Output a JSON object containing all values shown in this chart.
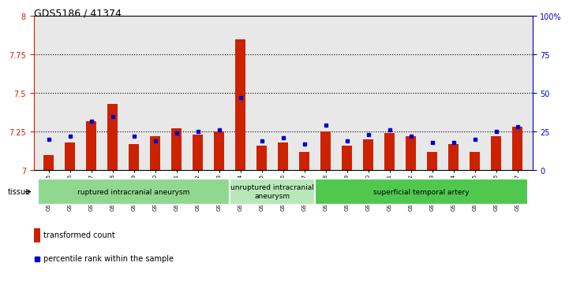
{
  "title": "GDS5186 / 41374",
  "samples": [
    "GSM1306885",
    "GSM1306886",
    "GSM1306887",
    "GSM1306888",
    "GSM1306889",
    "GSM1306890",
    "GSM1306891",
    "GSM1306892",
    "GSM1306893",
    "GSM1306894",
    "GSM1306895",
    "GSM1306896",
    "GSM1306897",
    "GSM1306898",
    "GSM1306899",
    "GSM1306900",
    "GSM1306901",
    "GSM1306902",
    "GSM1306903",
    "GSM1306904",
    "GSM1306905",
    "GSM1306906",
    "GSM1306907"
  ],
  "red_values": [
    7.1,
    7.18,
    7.32,
    7.43,
    7.17,
    7.22,
    7.27,
    7.23,
    7.25,
    7.85,
    7.16,
    7.18,
    7.12,
    7.25,
    7.16,
    7.2,
    7.24,
    7.22,
    7.12,
    7.17,
    7.12,
    7.22,
    7.28
  ],
  "blue_values": [
    20,
    22,
    32,
    35,
    22,
    19,
    24,
    25,
    26,
    47,
    19,
    21,
    17,
    29,
    19,
    23,
    26,
    22,
    18,
    18,
    20,
    25,
    28
  ],
  "group_configs": [
    {
      "start": 0,
      "end": 8,
      "label": "ruptured intracranial aneurysm",
      "color": "#90d890"
    },
    {
      "start": 9,
      "end": 12,
      "label": "unruptured intracranial\naneurysm",
      "color": "#b8e8b8"
    },
    {
      "start": 13,
      "end": 22,
      "label": "superficial temporal artery",
      "color": "#50c850"
    }
  ],
  "y_min": 7.0,
  "y_max": 8.0,
  "y_ticks": [
    7.0,
    7.25,
    7.5,
    7.75,
    8.0
  ],
  "y_tick_labels": [
    "7",
    "7.25",
    "7.5",
    "7.75",
    "8"
  ],
  "y2_ticks": [
    0,
    25,
    50,
    75,
    100
  ],
  "y2_tick_labels": [
    "0",
    "25",
    "50",
    "75",
    "100%"
  ],
  "bar_color": "#cc2200",
  "dot_color": "#0000cc",
  "plot_bg": "#e8e8e8",
  "fig_bg": "#ffffff",
  "legend_tc": "transformed count",
  "legend_pr": "percentile rank within the sample",
  "tissue_label": "tissue"
}
